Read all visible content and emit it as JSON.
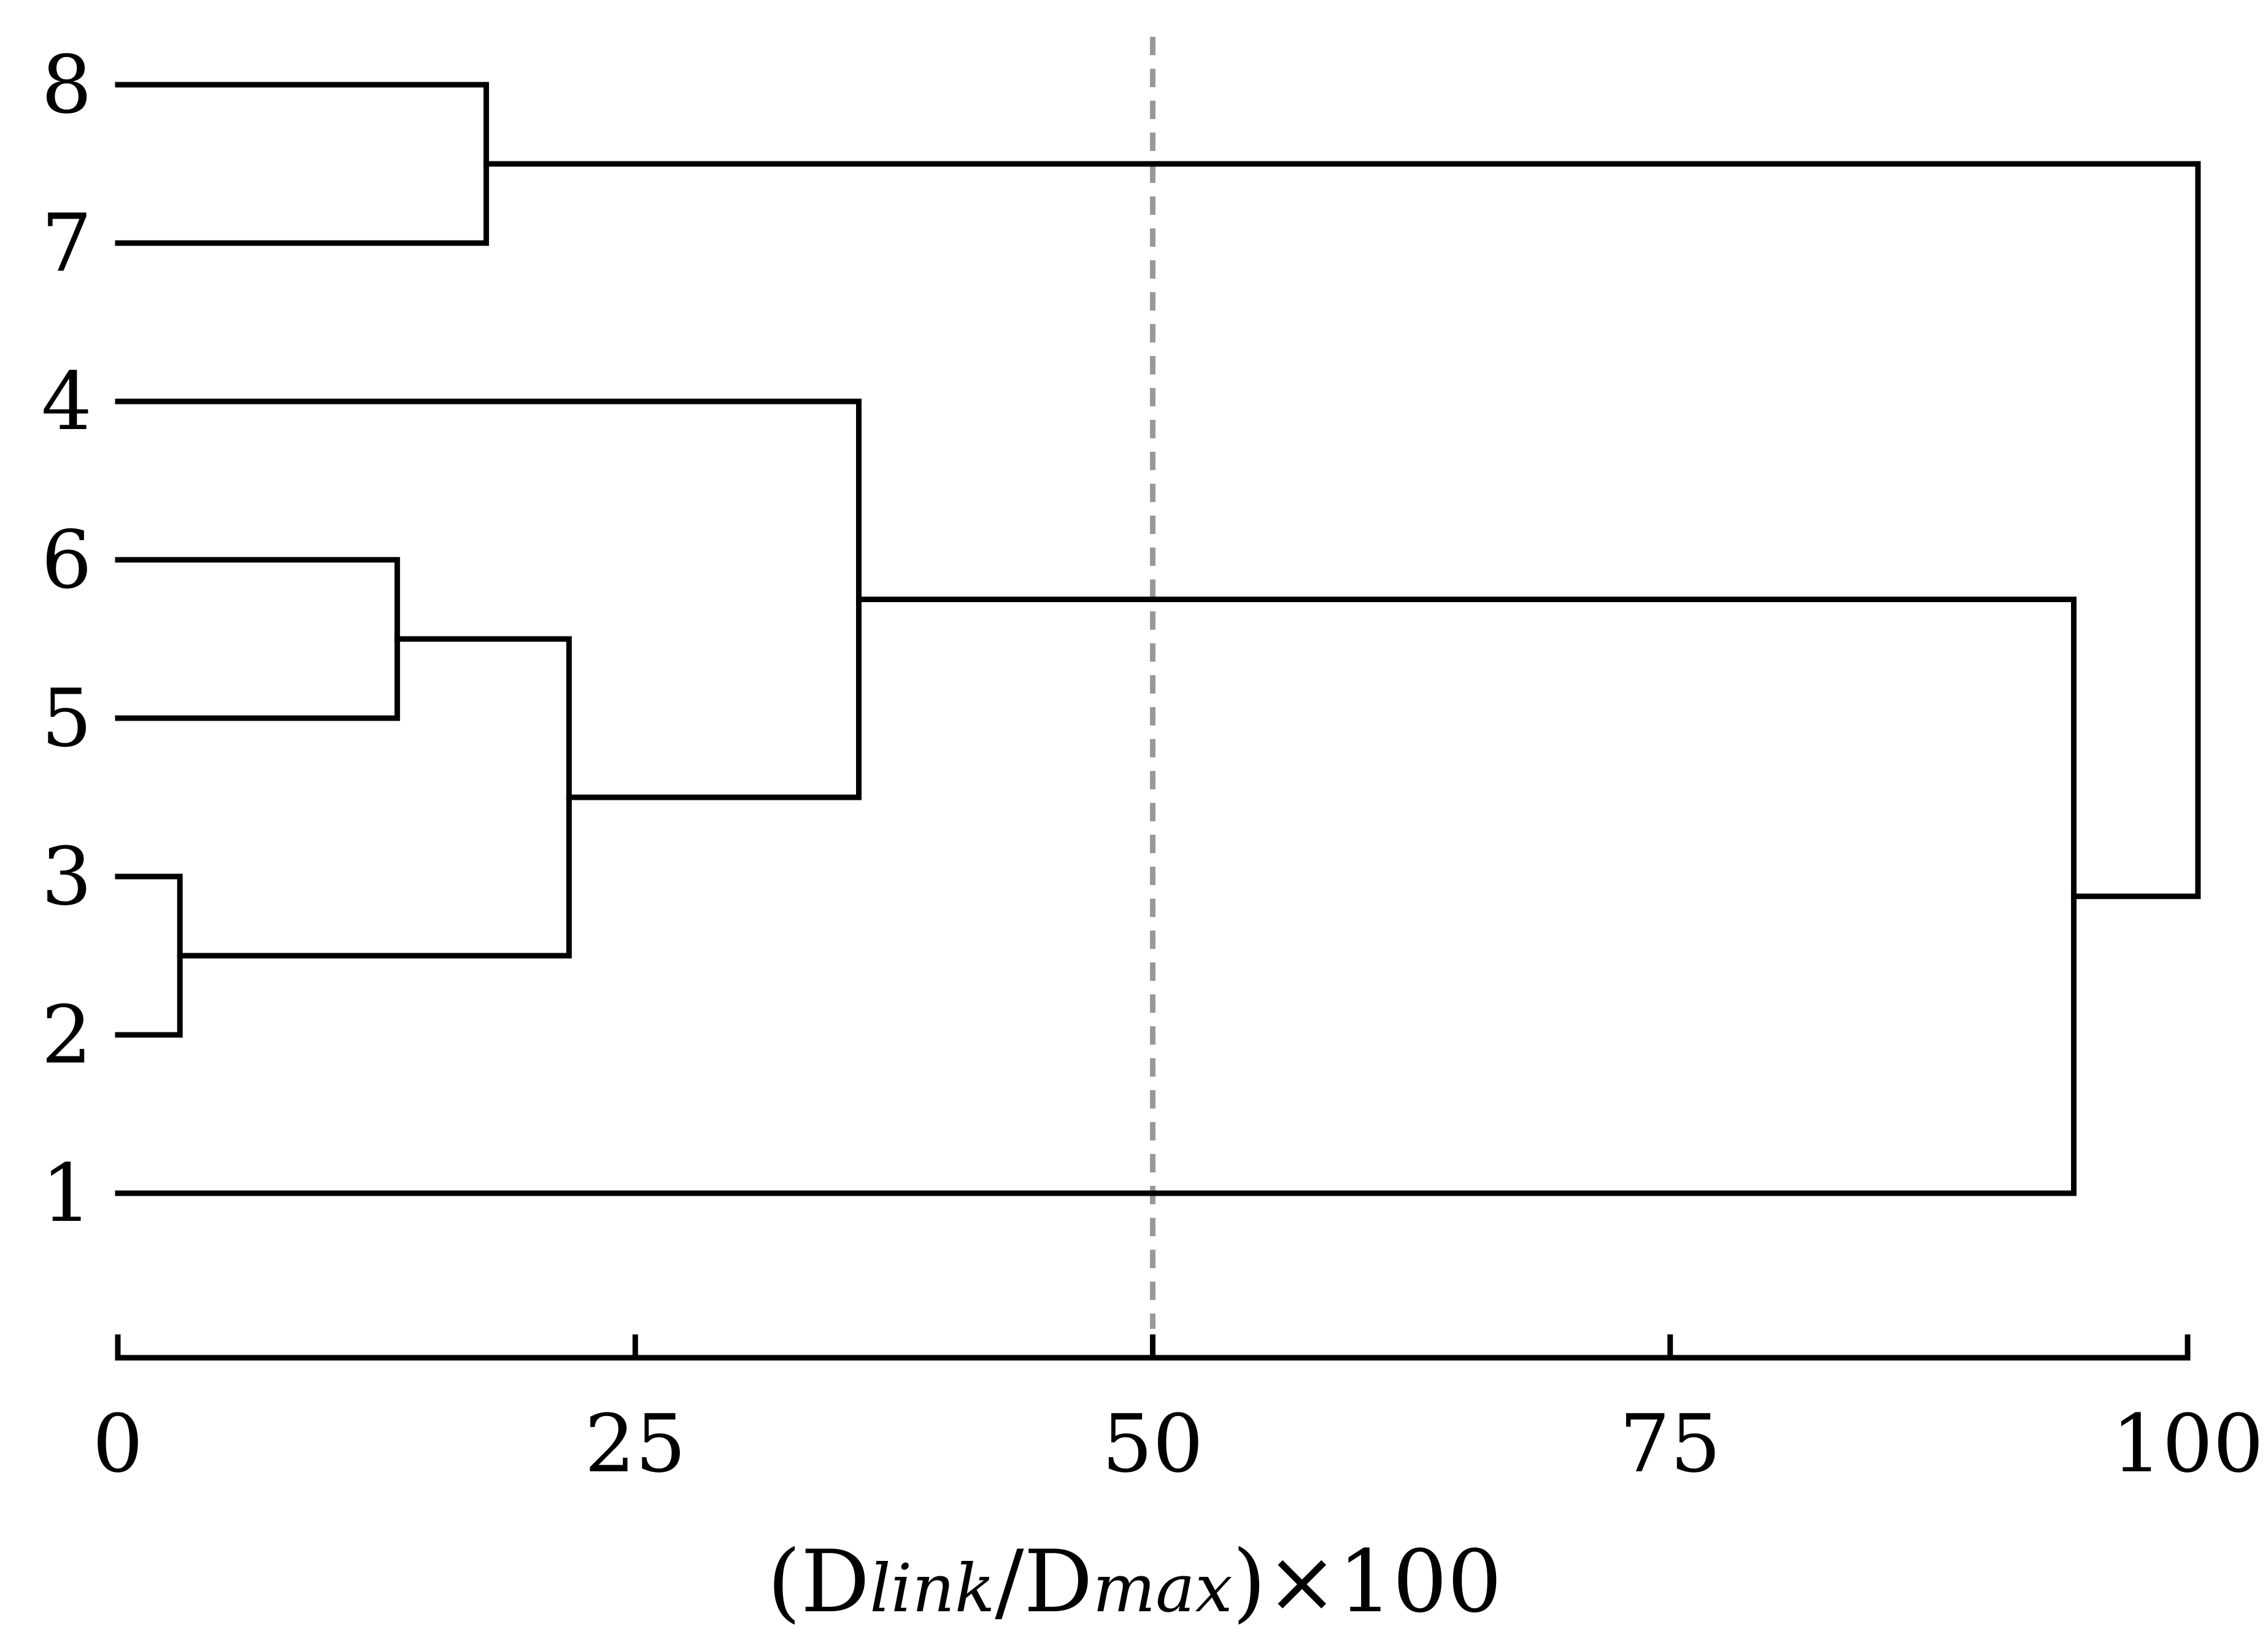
{
  "chart_data": {
    "type": "dendrogram",
    "orientation": "horizontal",
    "leaves": [
      "8",
      "7",
      "4",
      "6",
      "5",
      "3",
      "2",
      "1"
    ],
    "merges": [
      {
        "id": "A",
        "left": "3",
        "right": "2",
        "height": 3
      },
      {
        "id": "B",
        "left": "6",
        "right": "5",
        "height": 13.5
      },
      {
        "id": "C",
        "left": "8",
        "right": "7",
        "height": 17.8
      },
      {
        "id": "D",
        "left": "B",
        "right": "A",
        "height": 21.8
      },
      {
        "id": "E",
        "left": "4",
        "right": "D",
        "height": 35.8
      },
      {
        "id": "F",
        "left": "E",
        "right": "1",
        "height": 94.5
      },
      {
        "id": "G",
        "left": "C",
        "right": "F",
        "height": 100.5
      }
    ],
    "cut_line": 50,
    "xlim": [
      0,
      100
    ],
    "xticks": [
      0,
      25,
      50,
      75,
      100
    ],
    "xtick_labels": [
      "0",
      "25",
      "50",
      "75",
      "100"
    ],
    "xlabel": {
      "open": "(D",
      "sub1": "link",
      "mid": "/D",
      "sub2": "max",
      "close": ")×100"
    },
    "colors": {
      "lines": "#000000",
      "cut_line": "#999999"
    }
  }
}
